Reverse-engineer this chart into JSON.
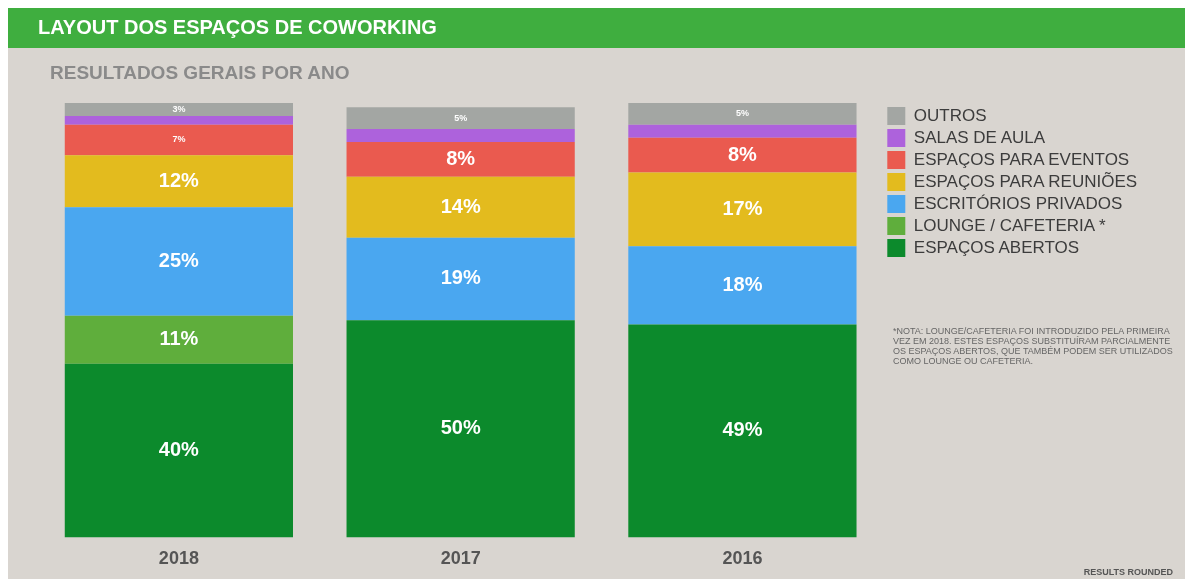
{
  "chart_data": {
    "type": "bar",
    "title": "LAYOUT DOS ESPAÇOS DE COWORKING",
    "subtitle": "RESULTADOS GERAIS POR ANO",
    "categories": [
      "2018",
      "2017",
      "2016"
    ],
    "stacked": true,
    "legend": "top right",
    "series": [
      {
        "name": "ESPAÇOS ABERTOS",
        "color": "#0c8a2c",
        "values": [
          40,
          50,
          49
        ],
        "value_labels": [
          "40%",
          "50%",
          "49%"
        ]
      },
      {
        "name": "LOUNGE / CAFETERIA *",
        "color": "#5fae3c",
        "values": [
          11,
          0,
          0
        ],
        "value_labels": [
          "11%",
          null,
          null
        ]
      },
      {
        "name": "ESCRITÓRIOS PRIVADOS",
        "color": "#4aa7f0",
        "values": [
          25,
          19,
          18
        ],
        "value_labels": [
          "25%",
          "19%",
          "18%"
        ]
      },
      {
        "name": "ESPAÇOS PARA REUNIÕES",
        "color": "#e3bb1e",
        "values": [
          12,
          14,
          17
        ],
        "value_labels": [
          "12%",
          "14%",
          "17%"
        ]
      },
      {
        "name": "ESPAÇOS PARA EVENTOS",
        "color": "#ea5a4f",
        "values": [
          7,
          8,
          8
        ],
        "value_labels": [
          "7%",
          "8%",
          "8%"
        ]
      },
      {
        "name": "SALAS DE AULA",
        "color": "#ad62dc",
        "values": [
          2,
          3,
          3
        ],
        "value_labels": [
          null,
          null,
          null
        ]
      },
      {
        "name": "OUTROS",
        "color": "#a3a6a3",
        "values": [
          3,
          5,
          5
        ],
        "value_labels": [
          "3%",
          "5%",
          "5%"
        ]
      }
    ],
    "annotations": [
      "*NOTA: LOUNGE/CAFETERIA FOI INTRODUZIDO PELA PRIMEIRA VEZ EM 2018. ESTES ESPAÇOS SUBSTITUÍRAM PARCIALMENTE OS ESPAÇOS ABERTOS, QUE TAMBÉM PODEM SER UTILIZADOS COMO LOUNGE OU CAFETERIA.",
      "RESULTS ROUNDED"
    ]
  }
}
